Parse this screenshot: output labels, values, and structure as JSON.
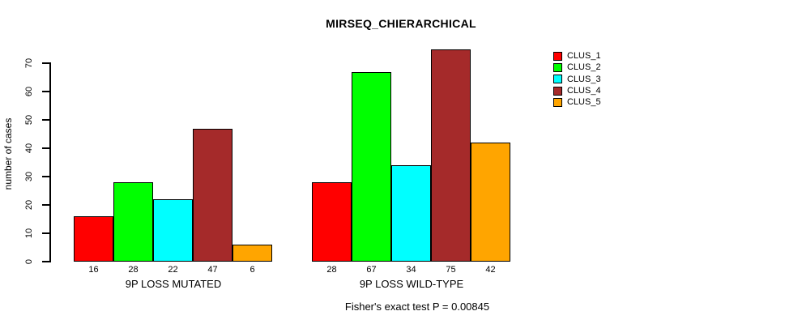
{
  "chart_data": {
    "type": "bar",
    "title": "MIRSEQ_CHIERARCHICAL",
    "ylabel": "number of cases",
    "xlabel": "",
    "categories": [
      "9P LOSS MUTATED",
      "9P LOSS WILD-TYPE"
    ],
    "series": [
      {
        "name": "CLUS_1",
        "color": "#FF0000",
        "values": [
          16,
          28
        ]
      },
      {
        "name": "CLUS_2",
        "color": "#00FF00",
        "values": [
          28,
          67
        ]
      },
      {
        "name": "CLUS_3",
        "color": "#00FFFF",
        "values": [
          22,
          34
        ]
      },
      {
        "name": "CLUS_4",
        "color": "#A52A2A",
        "values": [
          47,
          75
        ]
      },
      {
        "name": "CLUS_5",
        "color": "#FFA500",
        "values": [
          6,
          42
        ]
      }
    ],
    "yticks": [
      0,
      10,
      20,
      30,
      40,
      50,
      60,
      70
    ],
    "ylim": [
      0,
      70
    ],
    "bar_value_labels_shown": true,
    "grid": false,
    "legend_position": "right",
    "annotation": "Fisher's exact test P = 0.00845"
  }
}
